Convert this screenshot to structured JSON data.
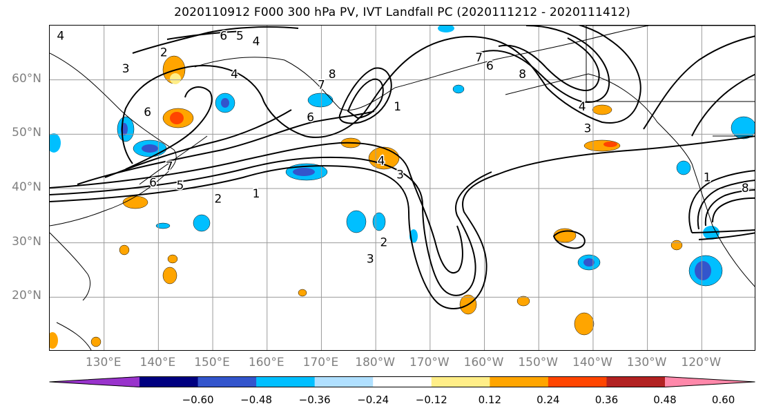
{
  "title": "2020110912 F000 300 hPa PV, IVT Landfall PC (2020111212 - 2020111412)",
  "lat_labels": [
    {
      "text": "60°N",
      "lat": 60
    },
    {
      "text": "50°N",
      "lat": 50
    },
    {
      "text": "40°N",
      "lat": 40
    },
    {
      "text": "30°N",
      "lat": 30
    },
    {
      "text": "20°N",
      "lat": 20
    }
  ],
  "lon_labels": [
    {
      "text": "130°E",
      "lon": 130
    },
    {
      "text": "140°E",
      "lon": 140
    },
    {
      "text": "150°E",
      "lon": 150
    },
    {
      "text": "160°E",
      "lon": 160
    },
    {
      "text": "170°E",
      "lon": 170
    },
    {
      "text": "180°W",
      "lon": 180
    },
    {
      "text": "170°W",
      "lon": 190
    },
    {
      "text": "160°W",
      "lon": 200
    },
    {
      "text": "150°W",
      "lon": 210
    },
    {
      "text": "140°W",
      "lon": 220
    },
    {
      "text": "130°W",
      "lon": 230
    },
    {
      "text": "120°W",
      "lon": 240
    }
  ],
  "colorbar": {
    "colors": [
      "#9933cc",
      "#000080",
      "#3355cc",
      "#00bfff",
      "#b0e0ff",
      "#ffffff",
      "#ffee88",
      "#ffa500",
      "#ff4500",
      "#b22222",
      "#ff88aa"
    ],
    "tick_labels": [
      "−0.60",
      "−0.48",
      "−0.36",
      "−0.24",
      "−0.12",
      "0.12",
      "0.24",
      "0.36",
      "0.48",
      "0.60"
    ]
  },
  "contour_labels": [
    {
      "text": "4",
      "lon": 122,
      "lat": 68
    },
    {
      "text": "3",
      "lon": 134,
      "lat": 62
    },
    {
      "text": "2",
      "lon": 141,
      "lat": 65
    },
    {
      "text": "6",
      "lon": 152,
      "lat": 68
    },
    {
      "text": "5",
      "lon": 155,
      "lat": 68
    },
    {
      "text": "4",
      "lon": 158,
      "lat": 67
    },
    {
      "text": "4",
      "lon": 154,
      "lat": 61
    },
    {
      "text": "6",
      "lon": 138,
      "lat": 54
    },
    {
      "text": "7",
      "lon": 142,
      "lat": 44
    },
    {
      "text": "6",
      "lon": 139,
      "lat": 41
    },
    {
      "text": "5",
      "lon": 144,
      "lat": 40.5
    },
    {
      "text": "2",
      "lon": 151,
      "lat": 38
    },
    {
      "text": "1",
      "lon": 158,
      "lat": 39
    },
    {
      "text": "6",
      "lon": 168,
      "lat": 53
    },
    {
      "text": "7",
      "lon": 170,
      "lat": 59
    },
    {
      "text": "8",
      "lon": 172,
      "lat": 61
    },
    {
      "text": "1",
      "lon": 184,
      "lat": 55
    },
    {
      "text": "4",
      "lon": 181,
      "lat": 45
    },
    {
      "text": "3",
      "lon": 184.5,
      "lat": 42.5
    },
    {
      "text": "3",
      "lon": 179,
      "lat": 27
    },
    {
      "text": "2",
      "lon": 181.5,
      "lat": 30
    },
    {
      "text": "7",
      "lon": 199,
      "lat": 64
    },
    {
      "text": "6",
      "lon": 201,
      "lat": 62.5
    },
    {
      "text": "8",
      "lon": 207,
      "lat": 61
    },
    {
      "text": "4",
      "lon": 218,
      "lat": 55
    },
    {
      "text": "3",
      "lon": 219,
      "lat": 51
    },
    {
      "text": "1",
      "lon": 241,
      "lat": 42
    },
    {
      "text": "8",
      "lon": 248,
      "lat": 40
    }
  ]
}
